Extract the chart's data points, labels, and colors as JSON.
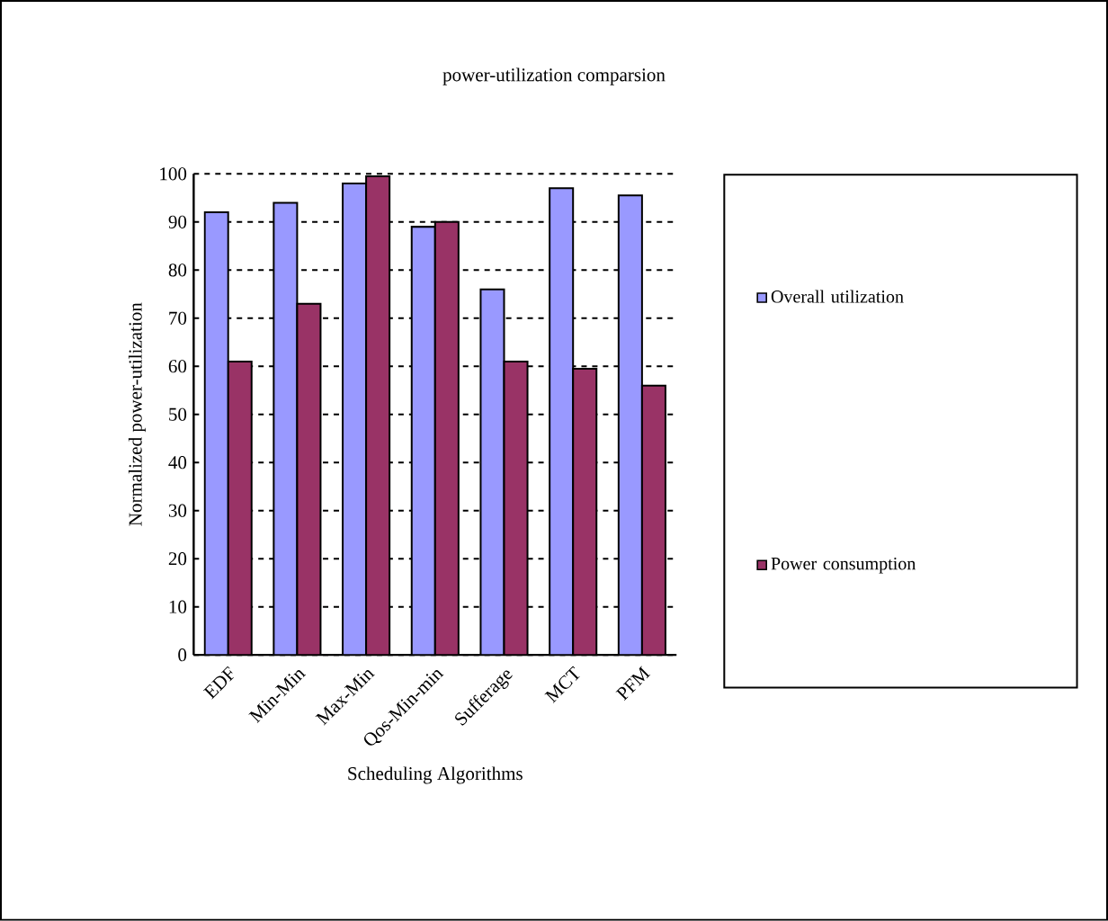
{
  "chart_data": {
    "type": "bar",
    "title": "power-utilization comparsion",
    "xlabel": "Scheduling Algorithms",
    "ylabel": "Normalized power-utilization",
    "categories": [
      "EDF",
      "Min-Min",
      "Max-Min",
      "Qos-Min-min",
      "Sufferage",
      "MCT",
      "PFM"
    ],
    "series": [
      {
        "name": "Overall utilization",
        "color": "#9999ff",
        "values": [
          92,
          94,
          98,
          89,
          76,
          97,
          95.5
        ]
      },
      {
        "name": "Power consumption",
        "color": "#993366",
        "values": [
          61,
          73,
          99.5,
          90,
          61,
          59.5,
          56
        ]
      }
    ],
    "ylim": [
      0,
      100
    ],
    "yticks": [
      0,
      10,
      20,
      30,
      40,
      50,
      60,
      70,
      80,
      90,
      100
    ],
    "grid": "y",
    "legend": "right"
  }
}
